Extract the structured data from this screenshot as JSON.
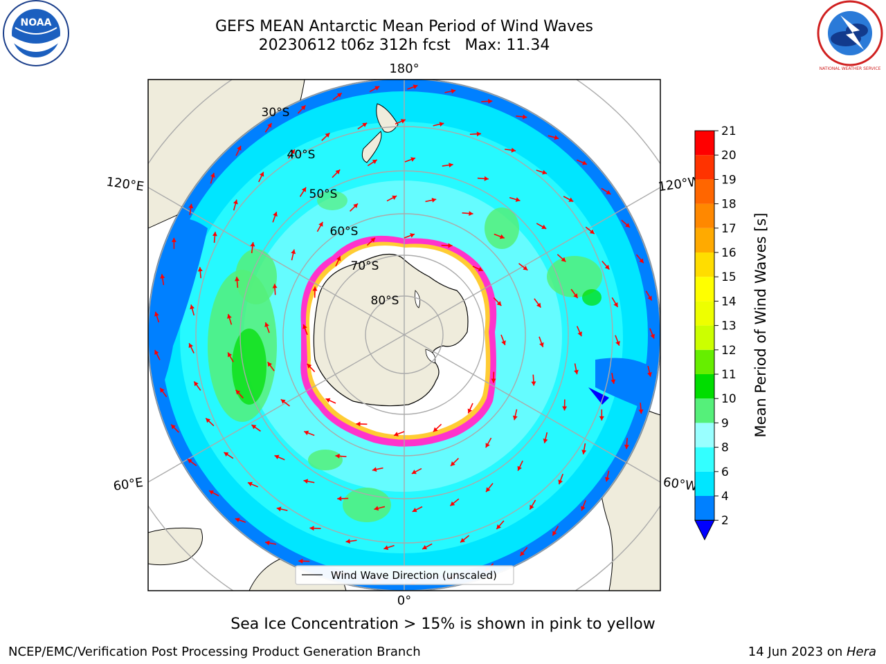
{
  "header": {
    "title_line1": "GEFS MEAN Antarctic Mean Period of Wind Waves",
    "title_line2": "20230612 t06z 312h fcst   Max: 11.34"
  },
  "logos": {
    "left": "NOAA",
    "right": "NATIONAL WEATHER SERVICE"
  },
  "map": {
    "lon_labels": {
      "top": "180°",
      "bottom": "0°",
      "left_upper": "120°E",
      "left_lower": "60°E",
      "right_upper": "120°W",
      "right_lower": "60°W"
    },
    "lat_labels": [
      "30°S",
      "40°S",
      "50°S",
      "60°S",
      "70°S",
      "80°S"
    ],
    "legend_label": "Wind Wave Direction (unscaled)",
    "arrow_color": "#ff0000",
    "land_color": "#efecdc",
    "ice_colors": [
      "#ff33cc",
      "#ffffff",
      "#ffcc33"
    ]
  },
  "colorbar": {
    "label": "Mean Period of Wind Waves [s]",
    "ticks": [
      "2",
      "4",
      "6",
      "8",
      "9",
      "10",
      "11",
      "12",
      "13",
      "14",
      "15",
      "16",
      "17",
      "18",
      "19",
      "20",
      "21"
    ],
    "colors": [
      "#0080ff",
      "#00e6ff",
      "#33ffff",
      "#99ffff",
      "#55f07a",
      "#00dd00",
      "#66ee00",
      "#ccff00",
      "#eeff00",
      "#ffff00",
      "#ffdd00",
      "#ffaa00",
      "#ff8800",
      "#ff6600",
      "#ff3300",
      "#ff0000"
    ],
    "extend_color": "#0000ff"
  },
  "caption": "Sea Ice Concentration > 15% is shown in pink to yellow",
  "footer": {
    "left": "NCEP/EMC/Verification Post Processing Product Generation Branch",
    "right_prefix": "14 Jun 2023 on ",
    "right_host": "Hera"
  }
}
